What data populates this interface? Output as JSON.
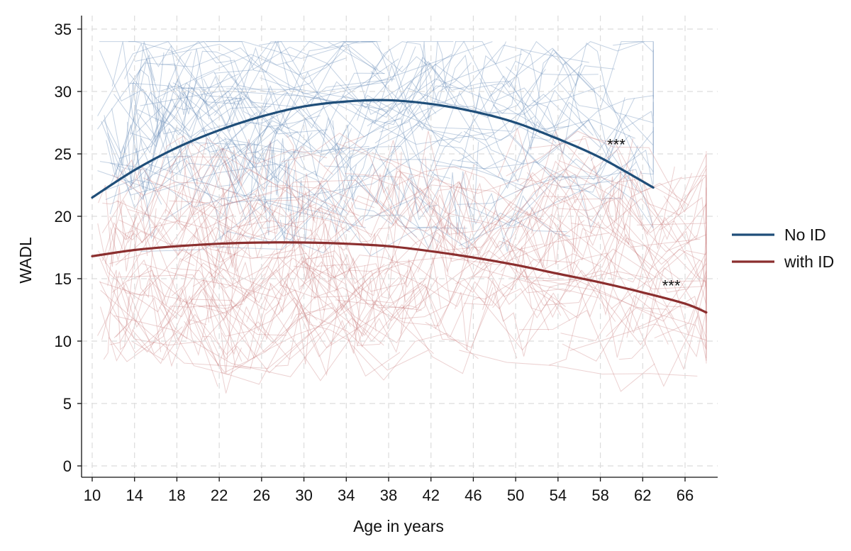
{
  "chart_data": {
    "type": "line",
    "xlabel": "Age in years",
    "ylabel": "WADL",
    "xlim": [
      10,
      68
    ],
    "ylim": [
      0,
      35
    ],
    "x_ticks": [
      10,
      14,
      18,
      22,
      26,
      30,
      34,
      38,
      42,
      46,
      50,
      54,
      58,
      62,
      66
    ],
    "y_ticks": [
      0,
      5,
      10,
      15,
      20,
      25,
      30,
      35
    ],
    "grid": true,
    "legend_position": "right",
    "series": [
      {
        "name": "No ID",
        "color": "#1f4e79",
        "x": [
          10,
          14,
          18,
          22,
          26,
          30,
          34,
          38,
          42,
          46,
          50,
          54,
          58,
          63
        ],
        "y": [
          21.5,
          23.7,
          25.5,
          26.9,
          28.0,
          28.8,
          29.2,
          29.3,
          29.0,
          28.4,
          27.5,
          26.2,
          24.7,
          22.3
        ]
      },
      {
        "name": "with ID",
        "color": "#8b2e2e",
        "x": [
          10,
          14,
          18,
          22,
          26,
          30,
          34,
          38,
          42,
          46,
          50,
          54,
          58,
          62,
          66,
          68
        ],
        "y": [
          16.8,
          17.3,
          17.6,
          17.8,
          17.9,
          17.9,
          17.8,
          17.6,
          17.2,
          16.7,
          16.1,
          15.4,
          14.7,
          13.9,
          13.0,
          12.3
        ]
      }
    ],
    "annotations": [
      {
        "text": "***",
        "x": 59.5,
        "y": 25.3
      },
      {
        "text": "***",
        "x": 64.7,
        "y": 14.0
      }
    ]
  }
}
